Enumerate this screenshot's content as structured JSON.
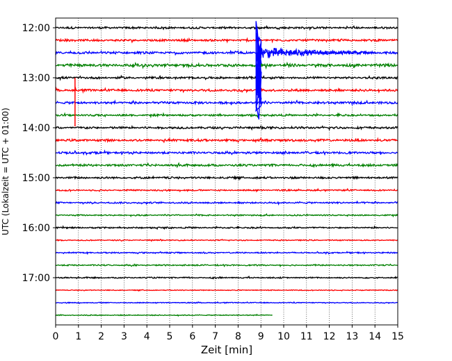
{
  "chart_data": {
    "type": "line",
    "subtype": "helicorder",
    "xlabel": "Zeit  [min]",
    "ylabel": "UTC (Lokalzeit = UTC + 01:00)",
    "x_ticks": [
      "0",
      "1",
      "2",
      "3",
      "4",
      "5",
      "6",
      "7",
      "8",
      "9",
      "10",
      "11",
      "12",
      "13",
      "14",
      "15"
    ],
    "xlim": [
      0,
      15
    ],
    "y_ticks": [
      "12:00",
      "13:00",
      "14:00",
      "15:00",
      "16:00",
      "17:00"
    ],
    "grid": "vertical dotted lines at each minute",
    "trace_interval_min": 15,
    "trace_colors": [
      "#000000",
      "#ff0000",
      "#0000ff",
      "#008000"
    ],
    "traces": [
      {
        "start": "12:00",
        "noise": 0.22
      },
      {
        "start": "12:15",
        "noise": 0.24
      },
      {
        "start": "12:30",
        "noise": 0.26
      },
      {
        "start": "12:45",
        "noise": 0.32
      },
      {
        "start": "13:00",
        "noise": 0.22
      },
      {
        "start": "13:15",
        "noise": 0.26
      },
      {
        "start": "13:30",
        "noise": 0.26
      },
      {
        "start": "13:45",
        "noise": 0.2
      },
      {
        "start": "14:00",
        "noise": 0.24
      },
      {
        "start": "14:15",
        "noise": 0.26
      },
      {
        "start": "14:30",
        "noise": 0.24
      },
      {
        "start": "14:45",
        "noise": 0.24
      },
      {
        "start": "15:00",
        "noise": 0.22
      },
      {
        "start": "15:15",
        "noise": 0.16
      },
      {
        "start": "15:30",
        "noise": 0.18
      },
      {
        "start": "15:45",
        "noise": 0.14
      },
      {
        "start": "16:00",
        "noise": 0.16
      },
      {
        "start": "16:15",
        "noise": 0.12
      },
      {
        "start": "16:30",
        "noise": 0.14
      },
      {
        "start": "16:45",
        "noise": 0.14
      },
      {
        "start": "17:00",
        "noise": 0.14
      },
      {
        "start": "17:15",
        "noise": 0.1
      },
      {
        "start": "17:30",
        "noise": 0.1
      },
      {
        "start": "17:45",
        "noise": 0.1,
        "end_min": 9.5
      }
    ],
    "events": [
      {
        "trace_start": "12:30",
        "time_min": 8.9,
        "amplitude": "large",
        "description": "earthquake onset, signal clipped across traces 12:00–13:45",
        "max_amplitude_traces": 6
      },
      {
        "trace_start": "13:15",
        "time_min": 0.85,
        "amplitude": "large",
        "description": "single spike spanning 13:00–14:00"
      }
    ]
  }
}
